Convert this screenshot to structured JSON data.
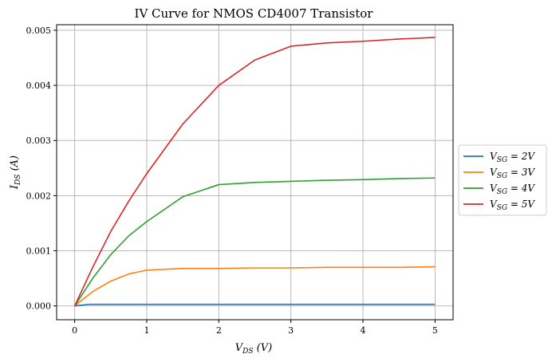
{
  "chart_data": {
    "type": "line",
    "title": "IV Curve for NMOS CD4007 Transistor",
    "xlabel": "V_DS (V)",
    "ylabel": "I_DS (A)",
    "xlim": [
      -0.25,
      5.25
    ],
    "ylim": [
      -0.00025,
      0.0051
    ],
    "xticks": [
      0,
      1,
      2,
      3,
      4,
      5
    ],
    "xtick_labels": [
      "0",
      "1",
      "2",
      "3",
      "4",
      "5"
    ],
    "yticks": [
      0,
      0.001,
      0.002,
      0.003,
      0.004,
      0.005
    ],
    "ytick_labels": [
      "0.000",
      "0.001",
      "0.002",
      "0.003",
      "0.004",
      "0.005"
    ],
    "grid": true,
    "legend_position": "center-right outside",
    "series": [
      {
        "name": "V_SG = 2V",
        "color": "#1f77b4",
        "x": [
          0,
          0.2,
          0.5,
          1,
          1.5,
          2,
          2.5,
          3,
          3.5,
          4,
          4.5,
          5
        ],
        "y": [
          0,
          3e-05,
          3e-05,
          3e-05,
          3e-05,
          3e-05,
          3e-05,
          3e-05,
          3e-05,
          3e-05,
          3e-05,
          3e-05
        ]
      },
      {
        "name": "V_SG = 3V",
        "color": "#ff7f0e",
        "x": [
          0,
          0.25,
          0.5,
          0.75,
          1,
          1.5,
          2,
          2.5,
          3,
          3.5,
          4,
          4.5,
          5
        ],
        "y": [
          0,
          0.00026,
          0.00045,
          0.00058,
          0.00065,
          0.00068,
          0.00068,
          0.00069,
          0.00069,
          0.0007,
          0.0007,
          0.0007,
          0.00071
        ]
      },
      {
        "name": "V_SG = 4V",
        "color": "#2ca02c",
        "x": [
          0,
          0.25,
          0.5,
          0.75,
          1,
          1.5,
          2,
          2.5,
          3,
          3.5,
          4,
          4.5,
          5
        ],
        "y": [
          0,
          0.0005,
          0.00093,
          0.00127,
          0.00153,
          0.00198,
          0.0022,
          0.00224,
          0.00226,
          0.00228,
          0.00229,
          0.00231,
          0.00232
        ]
      },
      {
        "name": "V_SG = 5V",
        "color": "#d62728",
        "x": [
          0,
          0.25,
          0.5,
          0.75,
          1,
          1.5,
          2,
          2.5,
          3,
          3.5,
          4,
          4.5,
          5
        ],
        "y": [
          0,
          0.0007,
          0.00135,
          0.0019,
          0.0024,
          0.0033,
          0.004,
          0.00446,
          0.00471,
          0.00477,
          0.0048,
          0.00484,
          0.00487
        ]
      }
    ]
  }
}
